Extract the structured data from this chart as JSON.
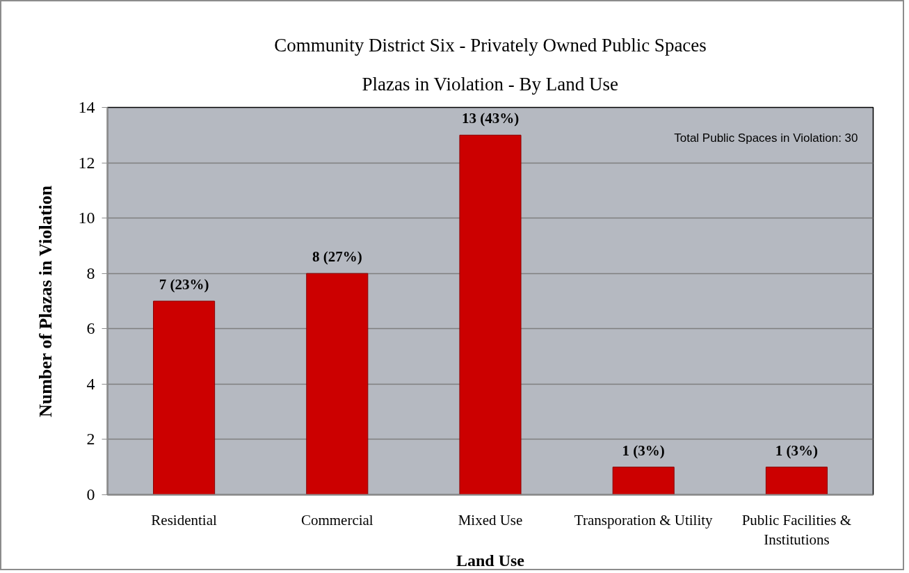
{
  "chart_data": {
    "type": "bar",
    "title": "Community District Six - Privately Owned Public Spaces",
    "subtitle": "Plazas in Violation - By Land Use",
    "xlabel": "Land Use",
    "ylabel": "Number of Plazas in Violation",
    "categories": [
      "Residential",
      "Commercial",
      "Mixed Use",
      "Transporation & Utility",
      "Public Facilities & Institutions"
    ],
    "values": [
      7,
      8,
      13,
      1,
      1
    ],
    "value_labels": [
      "7 (23%)",
      "8 (27%)",
      "13 (43%)",
      "1 (3%)",
      "1 (3%)"
    ],
    "color": "#cc0000",
    "ylim": [
      0,
      14
    ],
    "yticks": [
      0,
      2,
      4,
      6,
      8,
      10,
      12,
      14
    ],
    "grid": "y",
    "annotations": [
      "Total Public Spaces in Violation: 30"
    ]
  }
}
